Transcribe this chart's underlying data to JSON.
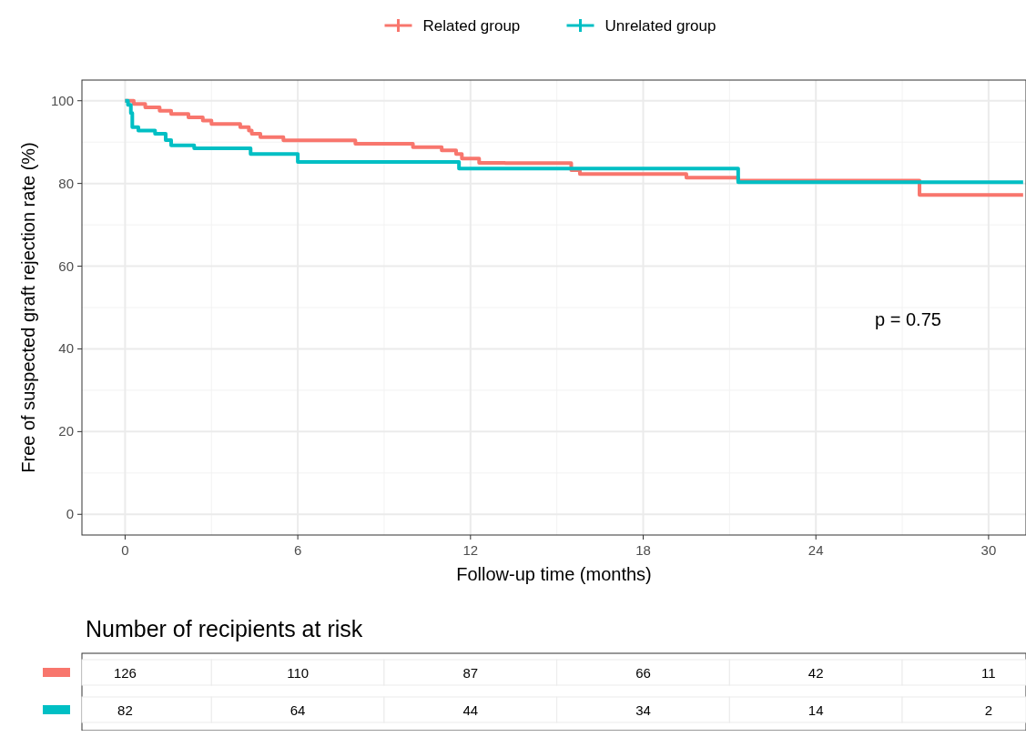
{
  "chart_data": [
    {
      "type": "step",
      "xlabel": "Follow-up time (months)",
      "ylabel": "Free of suspected graft rejection rate (%)",
      "xlim": [
        -1.5,
        31.3
      ],
      "ylim": [
        -5,
        105
      ],
      "xticks": [
        0,
        6,
        12,
        18,
        24,
        30
      ],
      "yticks": [
        0,
        20,
        40,
        60,
        80,
        100
      ],
      "grid": true,
      "legend": "top",
      "line_style": "solid",
      "annotations": [
        "p = 0.75"
      ],
      "series": [
        {
          "name": "Related group",
          "color": "#f8766d",
          "x": [
            0,
            0.3,
            0.7,
            1.2,
            1.6,
            2.2,
            2.7,
            3.0,
            4.0,
            4.3,
            4.4,
            4.7,
            5.5,
            8.0,
            10.0,
            11.0,
            11.5,
            11.7,
            12.3,
            13.2,
            15.5,
            15.8,
            19.5,
            21.3,
            27.6,
            31.2
          ],
          "values": [
            100,
            99.2,
            98.4,
            97.6,
            96.8,
            96,
            95.2,
            94.4,
            93.6,
            92.8,
            92,
            91.2,
            90.4,
            89.6,
            88.8,
            88,
            87.1,
            86,
            85,
            84.9,
            83.2,
            82.3,
            81.4,
            80.7,
            77.2,
            77.2
          ]
        },
        {
          "name": "Unrelated group",
          "color": "#00bfc4",
          "x": [
            0,
            0.1,
            0.2,
            0.25,
            0.46,
            1.04,
            1.41,
            1.6,
            2.4,
            4.36,
            6.0,
            11.6,
            21.3,
            31.2
          ],
          "values": [
            100,
            99,
            97,
            93.6,
            92.8,
            92,
            90.5,
            89.2,
            88.5,
            87.1,
            85.2,
            83.6,
            80.3,
            80.3
          ]
        }
      ]
    },
    {
      "type": "other",
      "title": "Number of recipients at risk",
      "annotations": [
        "126",
        "110",
        "87",
        "66",
        "42",
        "11",
        "82",
        "64",
        "44",
        "34",
        "14",
        "2"
      ]
    }
  ]
}
